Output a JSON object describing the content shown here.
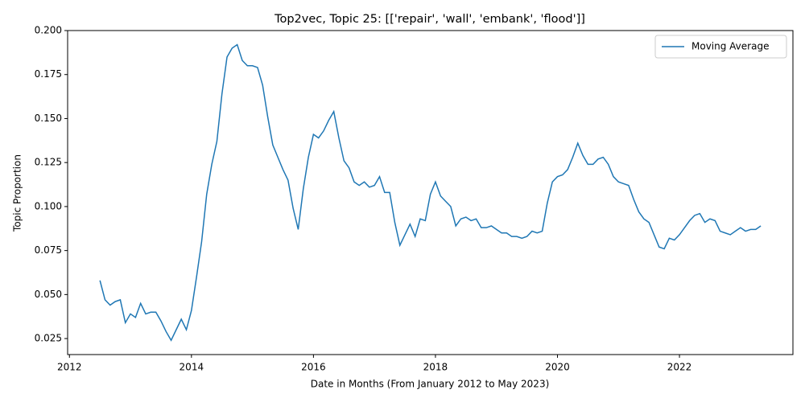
{
  "chart_data": {
    "type": "line",
    "title": "Top2vec, Topic 25: [['repair', 'wall', 'embank', 'flood']]",
    "x_label": "Date in Months (From January 2012 to May 2023)",
    "y_label": "Topic Proportion",
    "x": [
      2012.5,
      2012.5833,
      2012.6667,
      2012.75,
      2012.8333,
      2012.9167,
      2013,
      2013.0833,
      2013.1667,
      2013.25,
      2013.3333,
      2013.4167,
      2013.5,
      2013.5833,
      2013.6667,
      2013.75,
      2013.8333,
      2013.9167,
      2014,
      2014.0833,
      2014.1667,
      2014.25,
      2014.3333,
      2014.4167,
      2014.5,
      2014.5833,
      2014.6667,
      2014.75,
      2014.8333,
      2014.9167,
      2015,
      2015.0833,
      2015.1667,
      2015.25,
      2015.3333,
      2015.4167,
      2015.5,
      2015.5833,
      2015.6667,
      2015.75,
      2015.8333,
      2015.9167,
      2016,
      2016.0833,
      2016.1667,
      2016.25,
      2016.3333,
      2016.4167,
      2016.5,
      2016.5833,
      2016.6667,
      2016.75,
      2016.8333,
      2016.9167,
      2017,
      2017.0833,
      2017.1667,
      2017.25,
      2017.3333,
      2017.4167,
      2017.5,
      2017.5833,
      2017.6667,
      2017.75,
      2017.8333,
      2017.9167,
      2018,
      2018.0833,
      2018.1667,
      2018.25,
      2018.3333,
      2018.4167,
      2018.5,
      2018.5833,
      2018.6667,
      2018.75,
      2018.8333,
      2018.9167,
      2019,
      2019.0833,
      2019.1667,
      2019.25,
      2019.3333,
      2019.4167,
      2019.5,
      2019.5833,
      2019.6667,
      2019.75,
      2019.8333,
      2019.9167,
      2020,
      2020.0833,
      2020.1667,
      2020.25,
      2020.3333,
      2020.4167,
      2020.5,
      2020.5833,
      2020.6667,
      2020.75,
      2020.8333,
      2020.9167,
      2021,
      2021.0833,
      2021.1667,
      2021.25,
      2021.3333,
      2021.4167,
      2021.5,
      2021.5833,
      2021.6667,
      2021.75,
      2021.8333,
      2021.9167,
      2022,
      2022.0833,
      2022.1667,
      2022.25,
      2022.3333,
      2022.4167,
      2022.5,
      2022.5833,
      2022.6667,
      2022.75,
      2022.8333,
      2022.9167,
      2023,
      2023.0833,
      2023.1667,
      2023.25,
      2023.3333
    ],
    "series": [
      {
        "name": "Moving Average",
        "color": "#1f77b4",
        "values": [
          0.058,
          0.047,
          0.044,
          0.046,
          0.047,
          0.034,
          0.039,
          0.037,
          0.045,
          0.039,
          0.04,
          0.04,
          0.035,
          0.029,
          0.024,
          0.03,
          0.036,
          0.03,
          0.041,
          0.06,
          0.08,
          0.107,
          0.124,
          0.137,
          0.164,
          0.185,
          0.19,
          0.192,
          0.183,
          0.18,
          0.18,
          0.179,
          0.169,
          0.151,
          0.135,
          0.128,
          0.121,
          0.115,
          0.099,
          0.087,
          0.11,
          0.128,
          0.141,
          0.139,
          0.143,
          0.149,
          0.154,
          0.139,
          0.126,
          0.122,
          0.114,
          0.112,
          0.114,
          0.111,
          0.112,
          0.117,
          0.108,
          0.108,
          0.091,
          0.078,
          0.084,
          0.09,
          0.083,
          0.093,
          0.092,
          0.107,
          0.114,
          0.106,
          0.103,
          0.1,
          0.089,
          0.093,
          0.094,
          0.092,
          0.093,
          0.088,
          0.088,
          0.089,
          0.087,
          0.085,
          0.085,
          0.083,
          0.083,
          0.082,
          0.083,
          0.086,
          0.085,
          0.086,
          0.102,
          0.114,
          0.117,
          0.118,
          0.121,
          0.128,
          0.136,
          0.129,
          0.124,
          0.124,
          0.127,
          0.128,
          0.124,
          0.117,
          0.114,
          0.113,
          0.112,
          0.104,
          0.097,
          0.093,
          0.091,
          0.084,
          0.077,
          0.076,
          0.082,
          0.081,
          0.084,
          0.088,
          0.092,
          0.095,
          0.096,
          0.091,
          0.093,
          0.092,
          0.086,
          0.085,
          0.084,
          0.086,
          0.088,
          0.086,
          0.087,
          0.087,
          0.089
        ]
      }
    ],
    "xlim": [
      2011.97,
      2023.86
    ],
    "xticks": [
      2012,
      2014,
      2016,
      2018,
      2020,
      2022
    ],
    "ylim": [
      0.0159,
      0.2
    ],
    "yticks": [
      0.025,
      {
        "value": 0.05,
        "label": "0.050"
      },
      0.075,
      {
        "value": 0.1,
        "label": "0.100"
      },
      0.125,
      {
        "value": 0.15,
        "label": "0.150"
      },
      0.175,
      {
        "value": 0.2,
        "label": "0.200"
      }
    ],
    "legend": "upper right",
    "grid": false
  }
}
